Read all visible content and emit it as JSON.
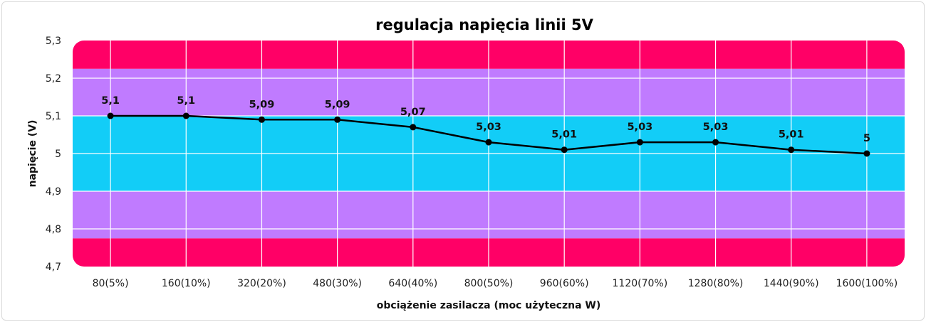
{
  "chart_data": {
    "type": "line",
    "title": "regulacja napięcia linii 5V",
    "xlabel": "obciążenie zasilacza (moc użyteczna W)",
    "ylabel": "napięcie (V)",
    "ylim": [
      4.7,
      5.3
    ],
    "yticks": [
      "4,7",
      "4,8",
      "4,9",
      "5",
      "5,1",
      "5,2",
      "5,3"
    ],
    "categories": [
      "80(5%)",
      "160(10%)",
      "320(20%)",
      "480(30%)",
      "640(40%)",
      "800(50%)",
      "960(60%)",
      "1120(70%)",
      "1280(80%)",
      "1440(90%)",
      "1600(100%)"
    ],
    "values": [
      5.1,
      5.1,
      5.09,
      5.09,
      5.07,
      5.03,
      5.01,
      5.03,
      5.03,
      5.01,
      5.0
    ],
    "value_labels": [
      "5,1",
      "5,1",
      "5,09",
      "5,09",
      "5,07",
      "5,03",
      "5,01",
      "5,03",
      "5,03",
      "5,01",
      "5"
    ],
    "bands": [
      {
        "from": 4.7,
        "to": 4.775,
        "color": "#ff0066"
      },
      {
        "from": 4.775,
        "to": 4.9,
        "color": "#c07bff"
      },
      {
        "from": 4.9,
        "to": 5.1,
        "color": "#12cdf7"
      },
      {
        "from": 5.1,
        "to": 5.225,
        "color": "#c07bff"
      },
      {
        "from": 5.225,
        "to": 5.3,
        "color": "#ff0066"
      }
    ],
    "line_color": "#000000",
    "grid": true
  }
}
